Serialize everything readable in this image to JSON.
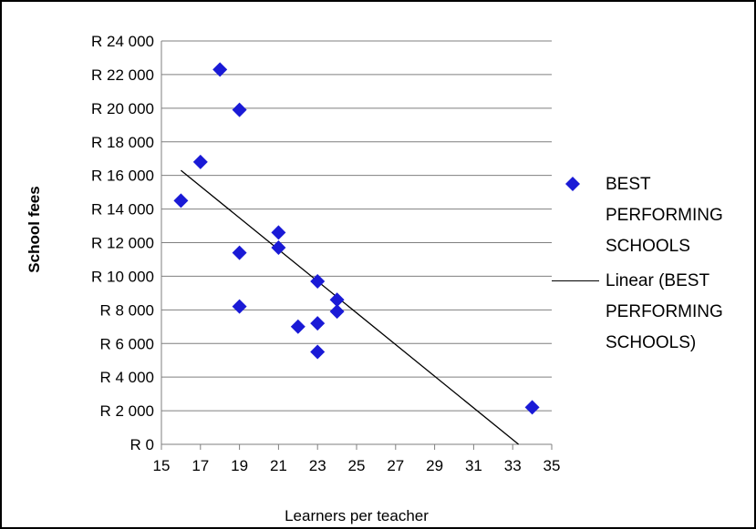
{
  "chart_data": {
    "type": "scatter",
    "xlabel": "Learners per teacher",
    "ylabel": "School fees",
    "xlim": [
      15,
      35
    ],
    "ylim": [
      0,
      24000
    ],
    "x_ticks": [
      "15",
      "17",
      "19",
      "21",
      "23",
      "25",
      "27",
      "29",
      "31",
      "33",
      "35"
    ],
    "y_ticks": [
      "R 0",
      "R 2 000",
      "R 4 000",
      "R 6 000",
      "R 8 000",
      "R 10 000",
      "R 12 000",
      "R 14 000",
      "R 16 000",
      "R 18 000",
      "R 20 000",
      "R 22 000",
      "R 24 000"
    ],
    "grid": "horizontal",
    "legend_position": "right",
    "series": [
      {
        "name": "BEST PERFORMING SCHOOLS",
        "marker": "diamond",
        "color": "#1a1ad6",
        "points": [
          {
            "x": 16,
            "y": 14500
          },
          {
            "x": 17,
            "y": 16800
          },
          {
            "x": 18,
            "y": 22300
          },
          {
            "x": 19,
            "y": 19900
          },
          {
            "x": 19,
            "y": 11400
          },
          {
            "x": 19,
            "y": 8200
          },
          {
            "x": 21,
            "y": 12600
          },
          {
            "x": 21,
            "y": 11700
          },
          {
            "x": 22,
            "y": 7000
          },
          {
            "x": 23,
            "y": 9700
          },
          {
            "x": 23,
            "y": 7200
          },
          {
            "x": 23,
            "y": 5500
          },
          {
            "x": 24,
            "y": 8600
          },
          {
            "x": 24,
            "y": 7900
          },
          {
            "x": 34,
            "y": 2200
          }
        ]
      },
      {
        "name": "Linear (BEST PERFORMING SCHOOLS)",
        "type": "trendline",
        "color": "#000000",
        "points": [
          {
            "x": 16,
            "y": 16300
          },
          {
            "x": 33.3,
            "y": 0
          }
        ]
      }
    ],
    "legend": {
      "marker_label_lines": [
        "BEST",
        "PERFORMING",
        "SCHOOLS"
      ],
      "line_label_lines": [
        "Linear (BEST",
        "PERFORMING",
        "SCHOOLS)"
      ]
    }
  }
}
